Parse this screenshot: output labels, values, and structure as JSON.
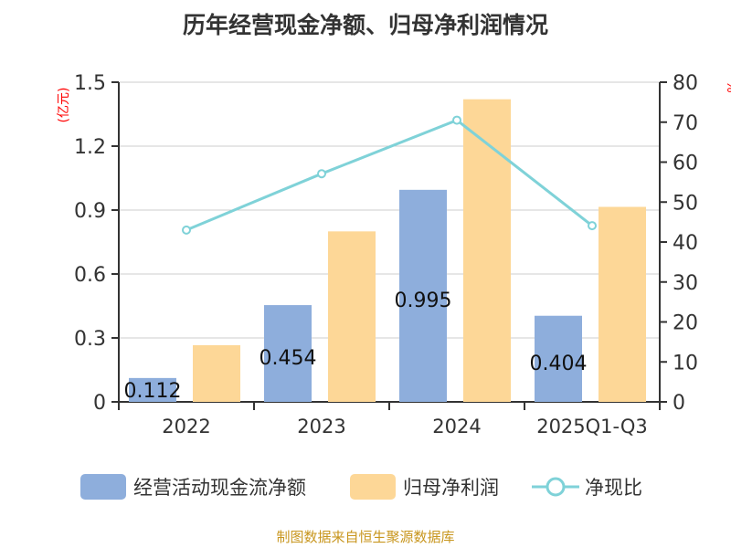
{
  "chart_data": {
    "type": "bar",
    "title": "历年经营现金净额、归母净利润情况",
    "categories": [
      "2022",
      "2023",
      "2024",
      "2025Q1-Q3"
    ],
    "series": [
      {
        "name": "经营活动现金流净额",
        "type": "bar",
        "axis": "left",
        "values": [
          0.112,
          0.454,
          0.995,
          0.404
        ],
        "color": "#8eaedc",
        "labels": [
          "0.112",
          "0.454",
          "0.995",
          "0.404"
        ]
      },
      {
        "name": "归母净利润",
        "type": "bar",
        "axis": "left",
        "values": [
          0.266,
          0.8,
          1.42,
          0.915
        ],
        "color": "#fdd797"
      },
      {
        "name": "净现比",
        "type": "line",
        "axis": "right",
        "values": [
          43.0,
          57.1,
          70.5,
          44.1
        ],
        "color": "#7fd2d8"
      }
    ],
    "ylabel": "(亿元)",
    "y2label": "%",
    "ylim": [
      0,
      1.5
    ],
    "y2lim": [
      0,
      80
    ],
    "yticks": [
      "0",
      "0.3",
      "0.6",
      "0.9",
      "1.2",
      "1.5"
    ],
    "y2ticks": [
      "0",
      "10",
      "20",
      "30",
      "40",
      "50",
      "60",
      "70",
      "80"
    ],
    "grid": true,
    "legend": "bottom"
  },
  "source": "制图数据来自恒生聚源数据库"
}
